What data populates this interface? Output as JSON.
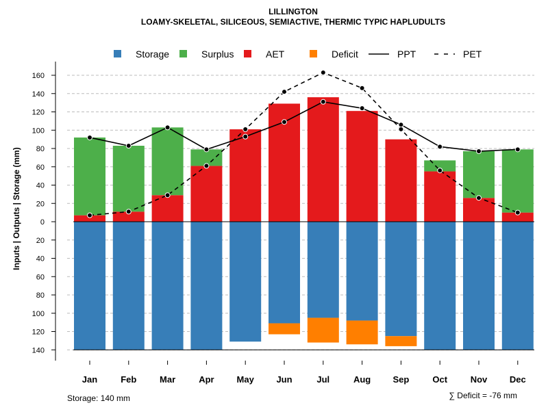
{
  "chart_data": {
    "type": "bar",
    "title": "LILLINGTON",
    "subtitle": "LOAMY-SKELETAL, SILICEOUS, SEMIACTIVE, THERMIC TYPIC HAPLUDULTS",
    "ylabel": "Inputs | Outputs | Storage    (mm)",
    "xlabel": "",
    "ylim": [
      -140,
      160
    ],
    "yticks": [
      160,
      140,
      120,
      100,
      80,
      60,
      40,
      20,
      0,
      -20,
      -40,
      -60,
      -80,
      -100,
      -120,
      -140
    ],
    "ytick_labels": [
      "160",
      "140",
      "120",
      "100",
      "80",
      "60",
      "40",
      "20",
      "0",
      "20",
      "40",
      "60",
      "80",
      "100",
      "120",
      "140"
    ],
    "grid": true,
    "legend_position": "top",
    "categories": [
      "Jan",
      "Feb",
      "Mar",
      "Apr",
      "May",
      "Jun",
      "Jul",
      "Aug",
      "Sep",
      "Oct",
      "Nov",
      "Dec"
    ],
    "series": [
      {
        "name": "Storage",
        "kind": "bar-down",
        "color": "#377EB8",
        "values": [
          140,
          140,
          140,
          140,
          131,
          111,
          105,
          108,
          125,
          140,
          140,
          140
        ]
      },
      {
        "name": "Surplus",
        "kind": "bar-stack",
        "color": "#4DAF4A",
        "values": [
          85,
          72,
          74,
          18,
          0,
          0,
          0,
          0,
          0,
          12,
          51,
          69
        ]
      },
      {
        "name": "AET",
        "kind": "bar",
        "color": "#E41A1C",
        "values": [
          7,
          11,
          29,
          61,
          101,
          129,
          136,
          121,
          90,
          55,
          26,
          10
        ]
      },
      {
        "name": "Deficit",
        "kind": "bar-down-stack",
        "color": "#FF7F00",
        "values": [
          0,
          0,
          0,
          0,
          0,
          12,
          27,
          26,
          11,
          0,
          0,
          0
        ]
      },
      {
        "name": "PPT",
        "kind": "line-solid",
        "color": "#000000",
        "values": [
          92,
          83,
          103,
          79,
          93,
          109,
          131,
          124,
          106,
          82,
          77,
          79
        ]
      },
      {
        "name": "PET",
        "kind": "line-dashed",
        "color": "#000000",
        "values": [
          7,
          11,
          29,
          61,
          101,
          142,
          163,
          146,
          101,
          56,
          26,
          10
        ]
      }
    ],
    "annotations": {
      "storage": "Storage: 140 mm",
      "deficit": "∑ Deficit = -76 mm"
    }
  }
}
